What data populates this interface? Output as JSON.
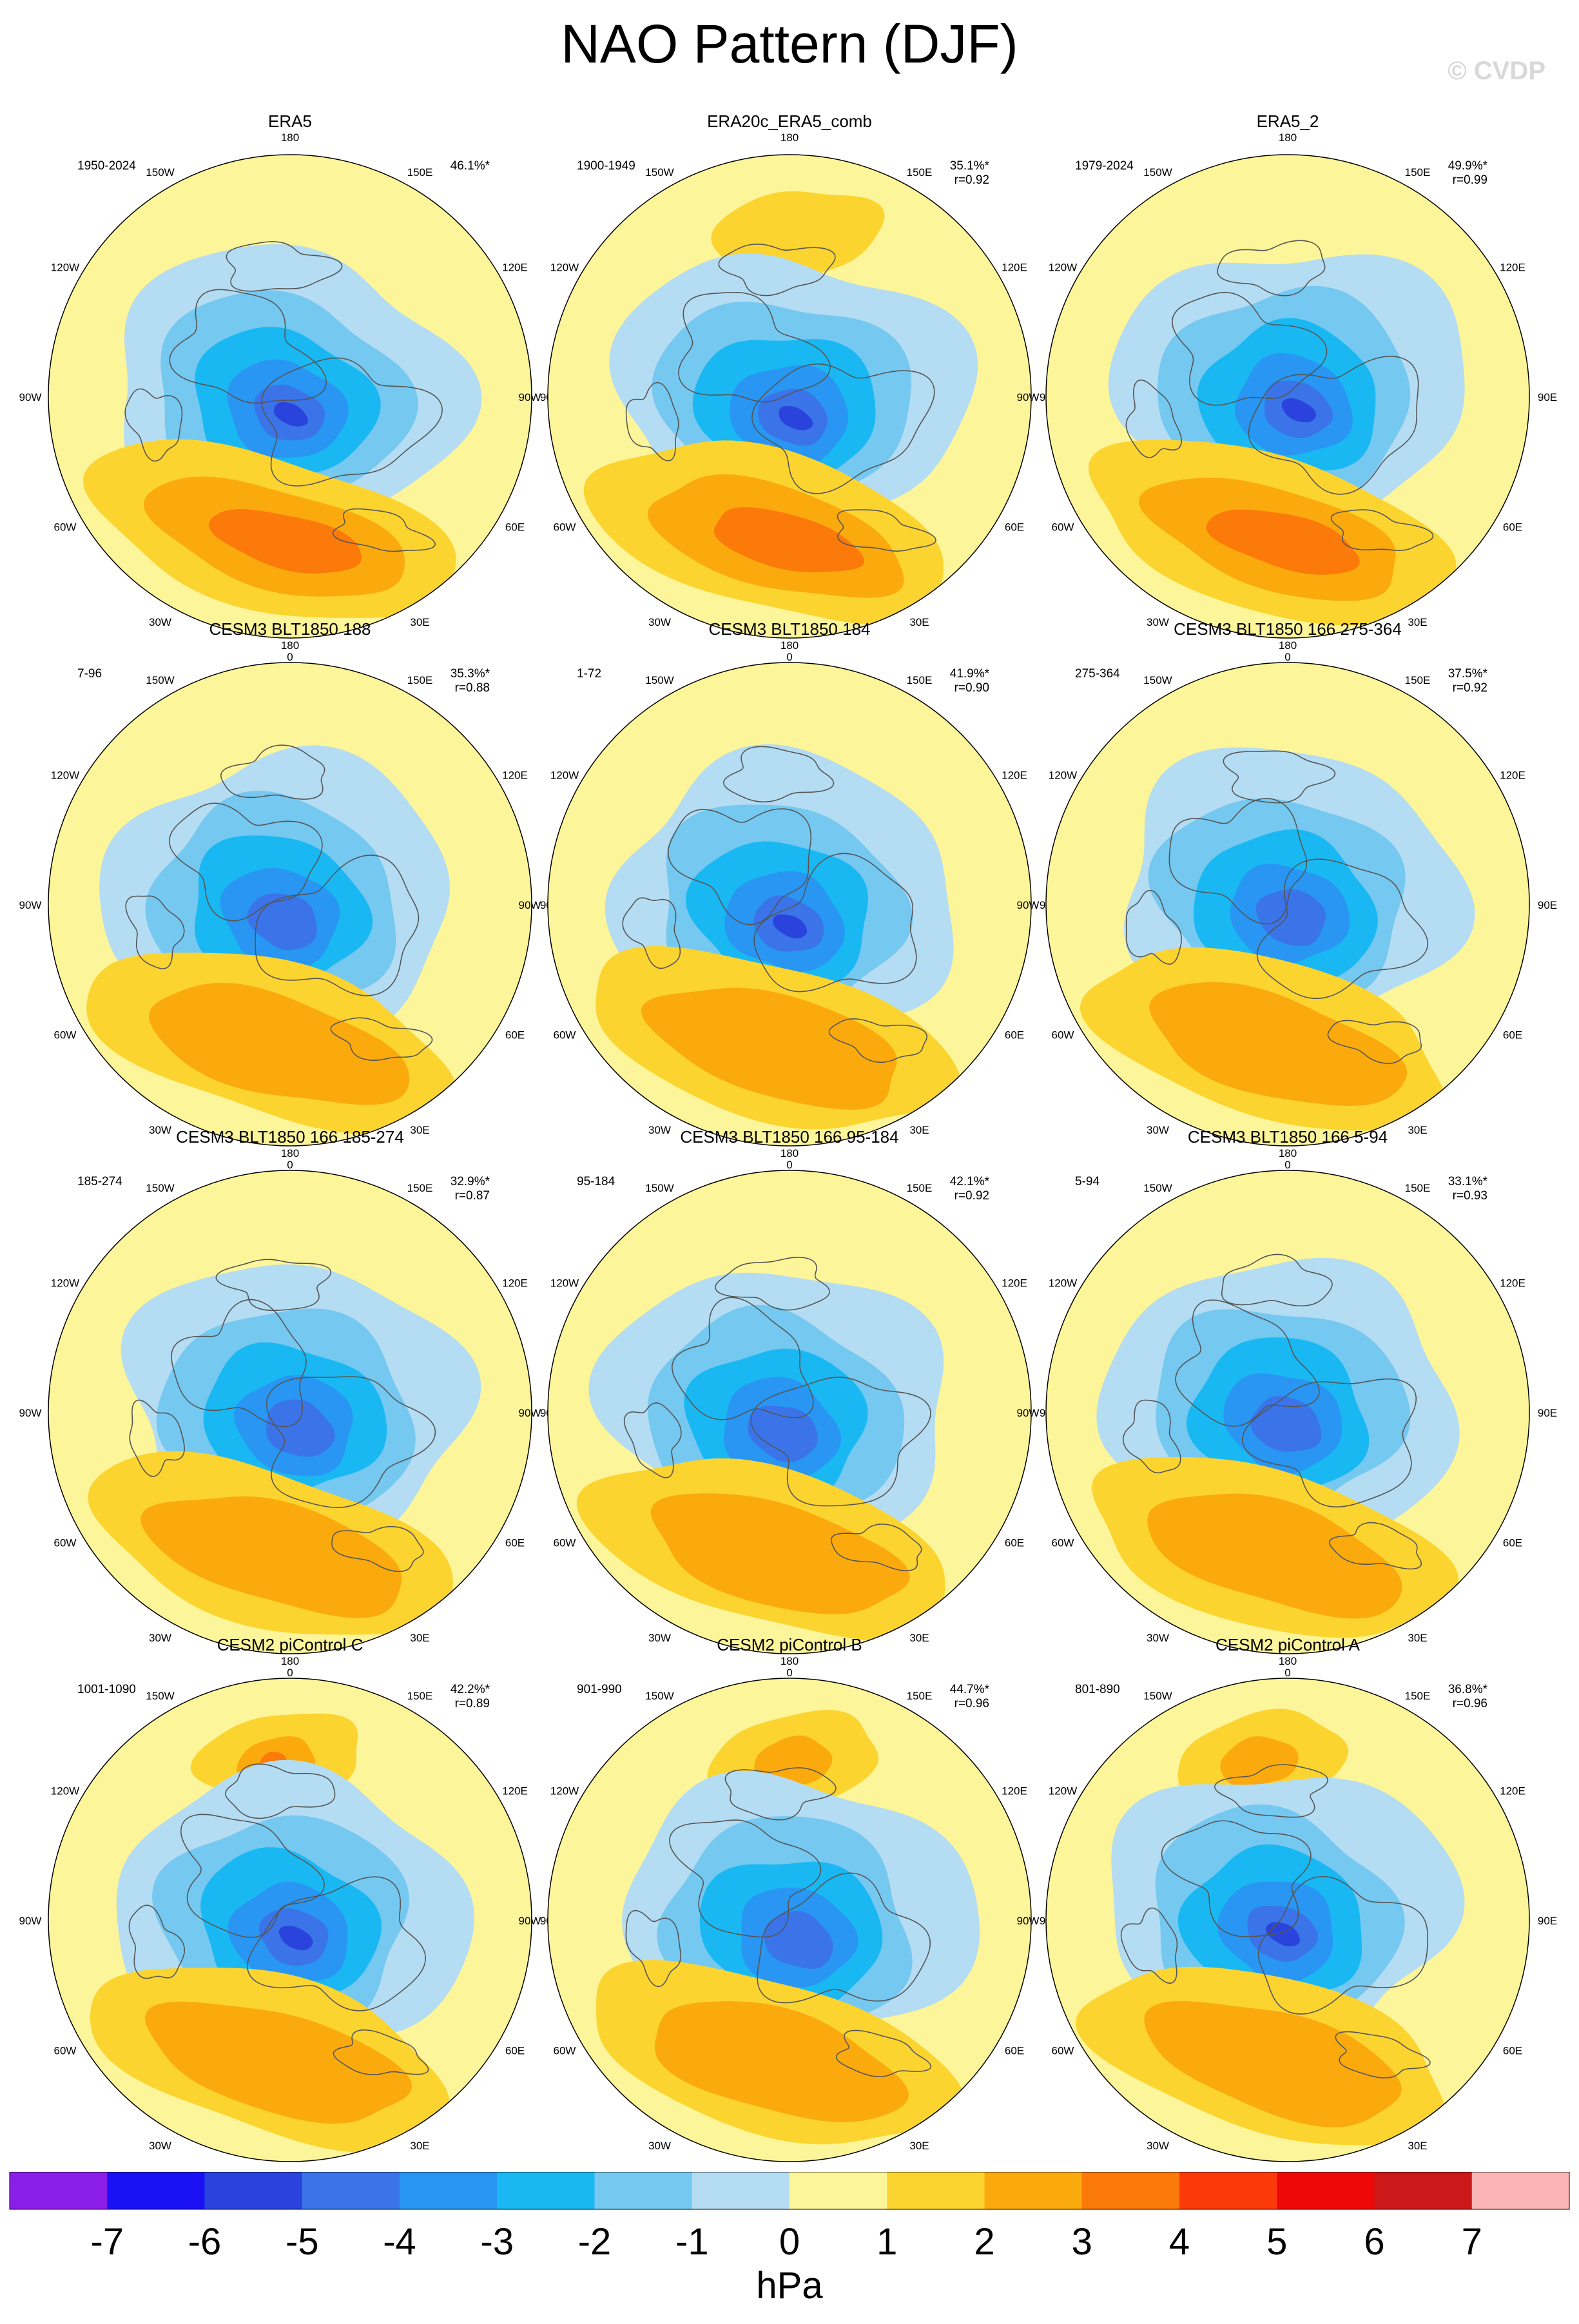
{
  "title": "NAO Pattern (DJF)",
  "watermark": "© CVDP",
  "lon_labels": [
    "180",
    "150E",
    "120E",
    "90E",
    "60E",
    "30E",
    "0",
    "30W",
    "60W",
    "90W",
    "120W",
    "150W"
  ],
  "panels": [
    {
      "name": "ERA5",
      "period": "1950-2024",
      "pct": "46.1%*",
      "r": ""
    },
    {
      "name": "ERA20c_ERA5_comb",
      "period": "1900-1949",
      "pct": "35.1%*",
      "r": "r=0.92"
    },
    {
      "name": "ERA5_2",
      "period": "1979-2024",
      "pct": "49.9%*",
      "r": "r=0.99"
    },
    {
      "name": "CESM3 BLT1850 188",
      "period": "7-96",
      "pct": "35.3%*",
      "r": "r=0.88"
    },
    {
      "name": "CESM3 BLT1850 184",
      "period": "1-72",
      "pct": "41.9%*",
      "r": "r=0.90"
    },
    {
      "name": "CESM3 BLT1850 166 275-364",
      "period": "275-364",
      "pct": "37.5%*",
      "r": "r=0.92"
    },
    {
      "name": "CESM3 BLT1850 166 185-274",
      "period": "185-274",
      "pct": "32.9%*",
      "r": "r=0.87"
    },
    {
      "name": "CESM3 BLT1850 166 95-184",
      "period": "95-184",
      "pct": "42.1%*",
      "r": "r=0.92"
    },
    {
      "name": "CESM3 BLT1850 166 5-94",
      "period": "5-94",
      "pct": "33.1%*",
      "r": "r=0.93"
    },
    {
      "name": "CESM2 piControl C",
      "period": "1001-1090",
      "pct": "42.2%*",
      "r": "r=0.89"
    },
    {
      "name": "CESM2 piControl B",
      "period": "901-990",
      "pct": "44.7%*",
      "r": "r=0.96"
    },
    {
      "name": "CESM2 piControl A",
      "period": "801-890",
      "pct": "36.8%*",
      "r": "r=0.96"
    }
  ],
  "colorbar": {
    "unit": "hPa",
    "colors": [
      "#8b1ee8",
      "#1a12f5",
      "#2a43dc",
      "#3a74e8",
      "#2896f2",
      "#1ab8f2",
      "#75c8f0",
      "#b4dcf2",
      "#fdf59a",
      "#fcd430",
      "#fbaa0e",
      "#fb7a0a",
      "#fb3a0a",
      "#ee0808",
      "#cc1818",
      "#fbb4b4"
    ],
    "ticks": [
      "-7",
      "-6",
      "-5",
      "-4",
      "-3",
      "-2",
      "-1",
      "0",
      "1",
      "2",
      "3",
      "4",
      "5",
      "6",
      "7"
    ]
  },
  "colors": {
    "land_outline": "#555555",
    "background": "#ffffff"
  }
}
